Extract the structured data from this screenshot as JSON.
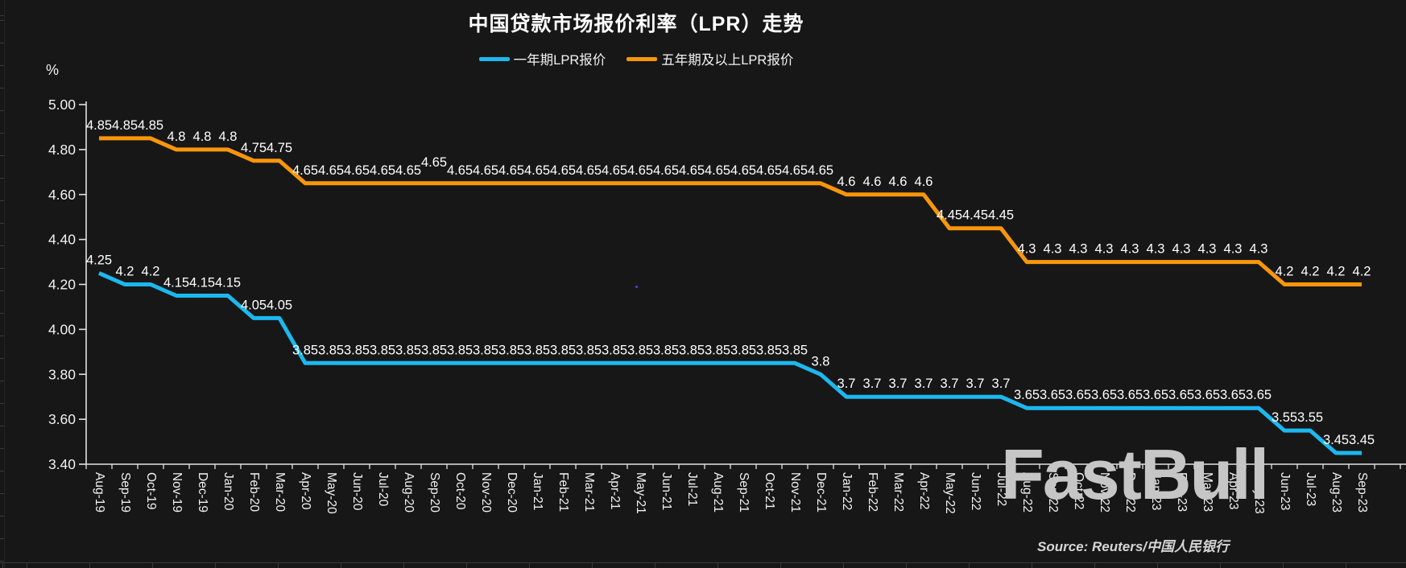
{
  "title": "中国贷款市场报价利率（LPR）走势",
  "y_axis_unit": "%",
  "legend": {
    "items": [
      {
        "label": "一年期LPR报价",
        "color": "#1CB8EE"
      },
      {
        "label": "五年期及以上LPR报价",
        "color": "#F8960B"
      }
    ]
  },
  "source_note": "Source: Reuters/中国人民银行",
  "watermark": "FastBull",
  "chart_data": {
    "type": "line",
    "title": "中国贷款市场报价利率（LPR）走势",
    "ylabel": "%",
    "ylim": [
      3.4,
      5.0
    ],
    "ytick_step": 0.2,
    "grid": false,
    "legend_position": "top",
    "data_labels": true,
    "x": [
      "Aug-19",
      "Sep-19",
      "Oct-19",
      "Nov-19",
      "Dec-19",
      "Jan-20",
      "Feb-20",
      "Mar-20",
      "Apr-20",
      "May-20",
      "Jun-20",
      "Jul-20",
      "Aug-20",
      "Sep-20",
      "Oct-20",
      "Nov-20",
      "Dec-20",
      "Jan-21",
      "Feb-21",
      "Mar-21",
      "Apr-21",
      "May-21",
      "Jun-21",
      "Jul-21",
      "Aug-21",
      "Sep-21",
      "Oct-21",
      "Nov-21",
      "Dec-21",
      "Jan-22",
      "Feb-22",
      "Mar-22",
      "Apr-22",
      "May-22",
      "Jun-22",
      "Jul-22",
      "Aug-22",
      "Sep-22",
      "Oct-22",
      "Nov-22",
      "Dec-22",
      "Jan-23",
      "Feb-23",
      "Mar-23",
      "Apr-23",
      "May-23",
      "Jun-23",
      "Jul-23",
      "Aug-23",
      "Sep-23"
    ],
    "series": [
      {
        "name": "一年期LPR报价",
        "color": "#1CB8EE",
        "values": [
          4.25,
          4.2,
          4.2,
          4.15,
          4.15,
          4.15,
          4.05,
          4.05,
          3.85,
          3.85,
          3.85,
          3.85,
          3.85,
          3.85,
          3.85,
          3.85,
          3.85,
          3.85,
          3.85,
          3.85,
          3.85,
          3.85,
          3.85,
          3.85,
          3.85,
          3.85,
          3.85,
          3.85,
          3.8,
          3.7,
          3.7,
          3.7,
          3.7,
          3.7,
          3.7,
          3.7,
          3.65,
          3.65,
          3.65,
          3.65,
          3.65,
          3.65,
          3.65,
          3.65,
          3.65,
          3.65,
          3.55,
          3.55,
          3.45,
          3.45
        ]
      },
      {
        "name": "五年期及以上LPR报价",
        "color": "#F8960B",
        "values": [
          4.85,
          4.85,
          4.85,
          4.8,
          4.8,
          4.8,
          4.75,
          4.75,
          4.65,
          4.65,
          4.65,
          4.65,
          4.65,
          4.65,
          4.65,
          4.65,
          4.65,
          4.65,
          4.65,
          4.65,
          4.65,
          4.65,
          4.65,
          4.65,
          4.65,
          4.65,
          4.65,
          4.65,
          4.65,
          4.6,
          4.6,
          4.6,
          4.6,
          4.45,
          4.45,
          4.45,
          4.3,
          4.3,
          4.3,
          4.3,
          4.3,
          4.3,
          4.3,
          4.3,
          4.3,
          4.3,
          4.2,
          4.2,
          4.2,
          4.2
        ],
        "label_dy": {
          "13": -10
        }
      }
    ]
  }
}
